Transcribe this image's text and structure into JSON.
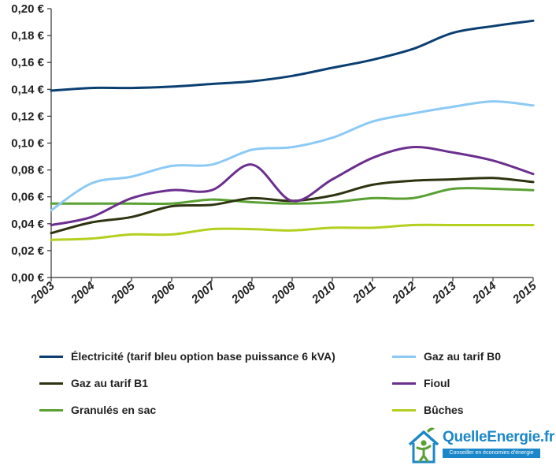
{
  "chart_data": {
    "type": "line",
    "x": [
      "2003",
      "2004",
      "2005",
      "2006",
      "2007",
      "2008",
      "2009",
      "2010",
      "2011",
      "2012",
      "2013",
      "2014",
      "2015"
    ],
    "ylim": [
      0,
      0.2
    ],
    "yticks": [
      "0,00 €",
      "0,02 €",
      "0,04 €",
      "0,06 €",
      "0,08 €",
      "0,10 €",
      "0,12 €",
      "0,14 €",
      "0,16 €",
      "0,18 €",
      "0,20 €"
    ],
    "grid": false,
    "legend_position": "bottom",
    "series": [
      {
        "name": "Électricité (tarif bleu option base puissance 6 kVA)",
        "color": "#0b3f72",
        "values": [
          0.139,
          0.141,
          0.141,
          0.142,
          0.144,
          0.146,
          0.15,
          0.156,
          0.162,
          0.17,
          0.182,
          0.187,
          0.191
        ]
      },
      {
        "name": "Gaz au tarif B0",
        "color": "#8ccaf5",
        "values": [
          0.05,
          0.07,
          0.075,
          0.083,
          0.084,
          0.095,
          0.097,
          0.104,
          0.116,
          0.122,
          0.127,
          0.131,
          0.128
        ]
      },
      {
        "name": "Gaz au tarif B1",
        "color": "#2e3311",
        "values": [
          0.033,
          0.041,
          0.045,
          0.053,
          0.054,
          0.059,
          0.057,
          0.061,
          0.069,
          0.072,
          0.073,
          0.074,
          0.071
        ]
      },
      {
        "name": "Fioul",
        "color": "#6b2f8e",
        "values": [
          0.039,
          0.045,
          0.059,
          0.065,
          0.065,
          0.084,
          0.057,
          0.073,
          0.089,
          0.097,
          0.093,
          0.087,
          0.077
        ]
      },
      {
        "name": "Granulés en sac",
        "color": "#5aa032",
        "values": [
          0.055,
          0.055,
          0.055,
          0.055,
          0.058,
          0.056,
          0.055,
          0.056,
          0.059,
          0.059,
          0.066,
          0.066,
          0.065
        ]
      },
      {
        "name": "Bûches",
        "color": "#b5cf1f",
        "values": [
          0.028,
          0.029,
          0.032,
          0.032,
          0.036,
          0.036,
          0.035,
          0.037,
          0.037,
          0.039,
          0.039,
          0.039,
          0.039
        ]
      }
    ]
  },
  "logo": {
    "name": "QuelleEnergie.fr",
    "tagline": "Conseiller en économies d'énergie",
    "color": "#1b87c9",
    "accent": "#5aa032"
  }
}
